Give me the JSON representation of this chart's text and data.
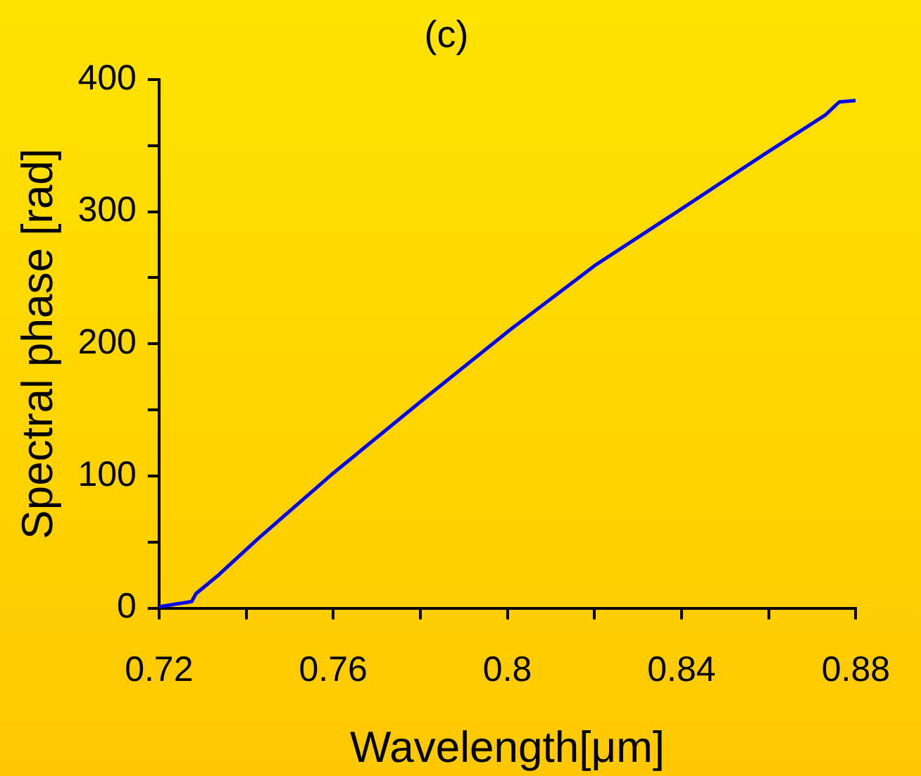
{
  "chart_data": {
    "type": "line",
    "title": "(c)",
    "xlabel": "Wavelength[μm]",
    "ylabel": "Spectral phase [rad]",
    "xlim": [
      0.72,
      0.88
    ],
    "ylim": [
      0,
      400
    ],
    "xticks": [
      0.72,
      {
        "value": 0.74,
        "label": null
      },
      0.76,
      {
        "value": 0.78,
        "label": null
      },
      0.8,
      {
        "value": 0.82,
        "label": null
      },
      0.84,
      {
        "value": 0.86,
        "label": null
      },
      0.88
    ],
    "yticks": [
      0,
      {
        "value": 50,
        "label": null
      },
      100,
      {
        "value": 150,
        "label": null
      },
      200,
      {
        "value": 250,
        "label": null
      },
      300,
      {
        "value": 350,
        "label": null
      },
      400
    ],
    "grid": false,
    "legend": false,
    "marker": "none",
    "line_style": "solid",
    "series": [
      {
        "color": "#0000ff",
        "x": [
          0.72,
          0.7275,
          0.7285,
          0.7333,
          0.7429,
          0.7596,
          0.7815,
          0.8008,
          0.82,
          0.8395,
          0.8588,
          0.873,
          0.8762,
          0.88
        ],
        "values": [
          1,
          5,
          11,
          24,
          53,
          101,
          160,
          211,
          259,
          301,
          343,
          373,
          383,
          384
        ]
      }
    ]
  }
}
